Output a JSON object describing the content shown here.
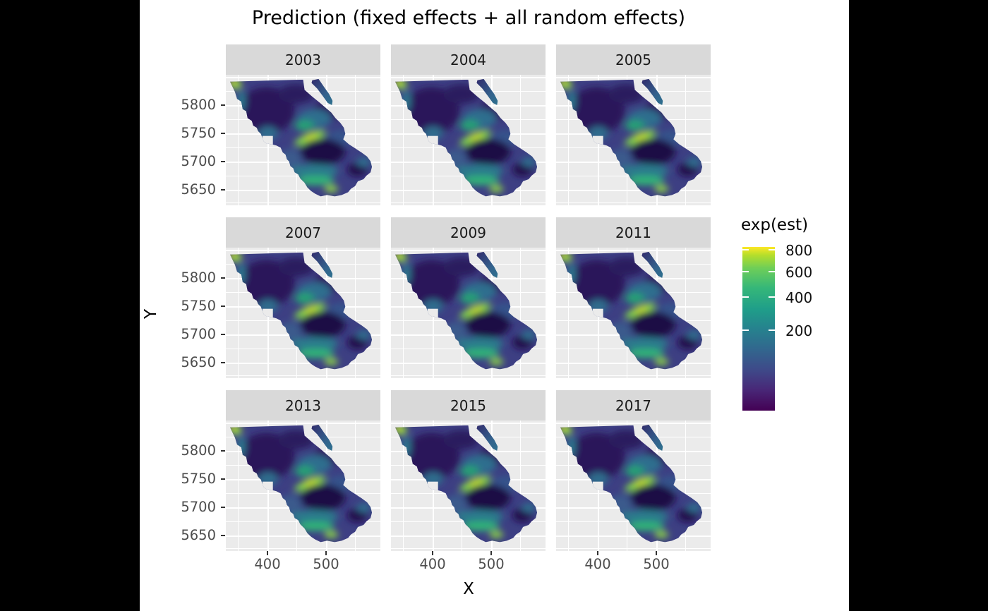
{
  "title": "Prediction (fixed effects + all random effects)",
  "axes": {
    "x_label": "X",
    "y_label": "Y",
    "x_tick_labels": [
      "400",
      "500"
    ],
    "y_tick_labels": [
      "5800",
      "5750",
      "5700",
      "5650"
    ]
  },
  "facets": [
    {
      "label": "2003"
    },
    {
      "label": "2004"
    },
    {
      "label": "2005"
    },
    {
      "label": "2007"
    },
    {
      "label": "2009"
    },
    {
      "label": "2011"
    },
    {
      "label": "2013"
    },
    {
      "label": "2015"
    },
    {
      "label": "2017"
    }
  ],
  "legend": {
    "title": "exp(est)",
    "ticks": [
      "800",
      "600",
      "400",
      "200"
    ],
    "tick_values": [
      800,
      600,
      400,
      200
    ],
    "scale": "sqrt",
    "max_value": 830,
    "min_value": 0,
    "palette": "viridis"
  },
  "colors": {
    "background": "#000000",
    "plot_background": "#ffffff",
    "panel_background": "#ebebeb",
    "strip_background": "#d9d9d9",
    "gridline": "#ffffff",
    "tick_text": "#4d4d4d",
    "viridis_low": "#440154",
    "viridis_mid": "#21918c",
    "viridis_high": "#fde725"
  },
  "chart_data": {
    "type": "heatmap",
    "title": "Prediction (fixed effects + all random effects)",
    "xlabel": "X",
    "ylabel": "Y",
    "facet_variable": "year",
    "facet_values": [
      "2003",
      "2004",
      "2005",
      "2007",
      "2009",
      "2011",
      "2013",
      "2015",
      "2017"
    ],
    "facet_layout": {
      "rows": 3,
      "cols": 3
    },
    "x_ticks": [
      400,
      500
    ],
    "y_ticks": [
      5800,
      5750,
      5700,
      5650
    ],
    "xlim": [
      325,
      595
    ],
    "ylim": [
      5620,
      5855
    ],
    "grid": true,
    "legend_position": "right",
    "color_scale": {
      "name": "exp(est)",
      "palette": "viridis",
      "transform": "sqrt",
      "ticks": [
        200,
        400,
        600,
        800
      ],
      "range": [
        0,
        830
      ]
    },
    "description": "Nine spatial raster maps (UTM km coordinates) of predicted exp(est) values over the same irregular study region, one per year. Values are mostly low (dark purple/blue, < 200) with teal mid-range bands and localized green-yellow hotspots: top-left corner, a diagonal streak near the panel center, and arcs near the bottom; a large very dark low-value blob sits right of center."
  }
}
